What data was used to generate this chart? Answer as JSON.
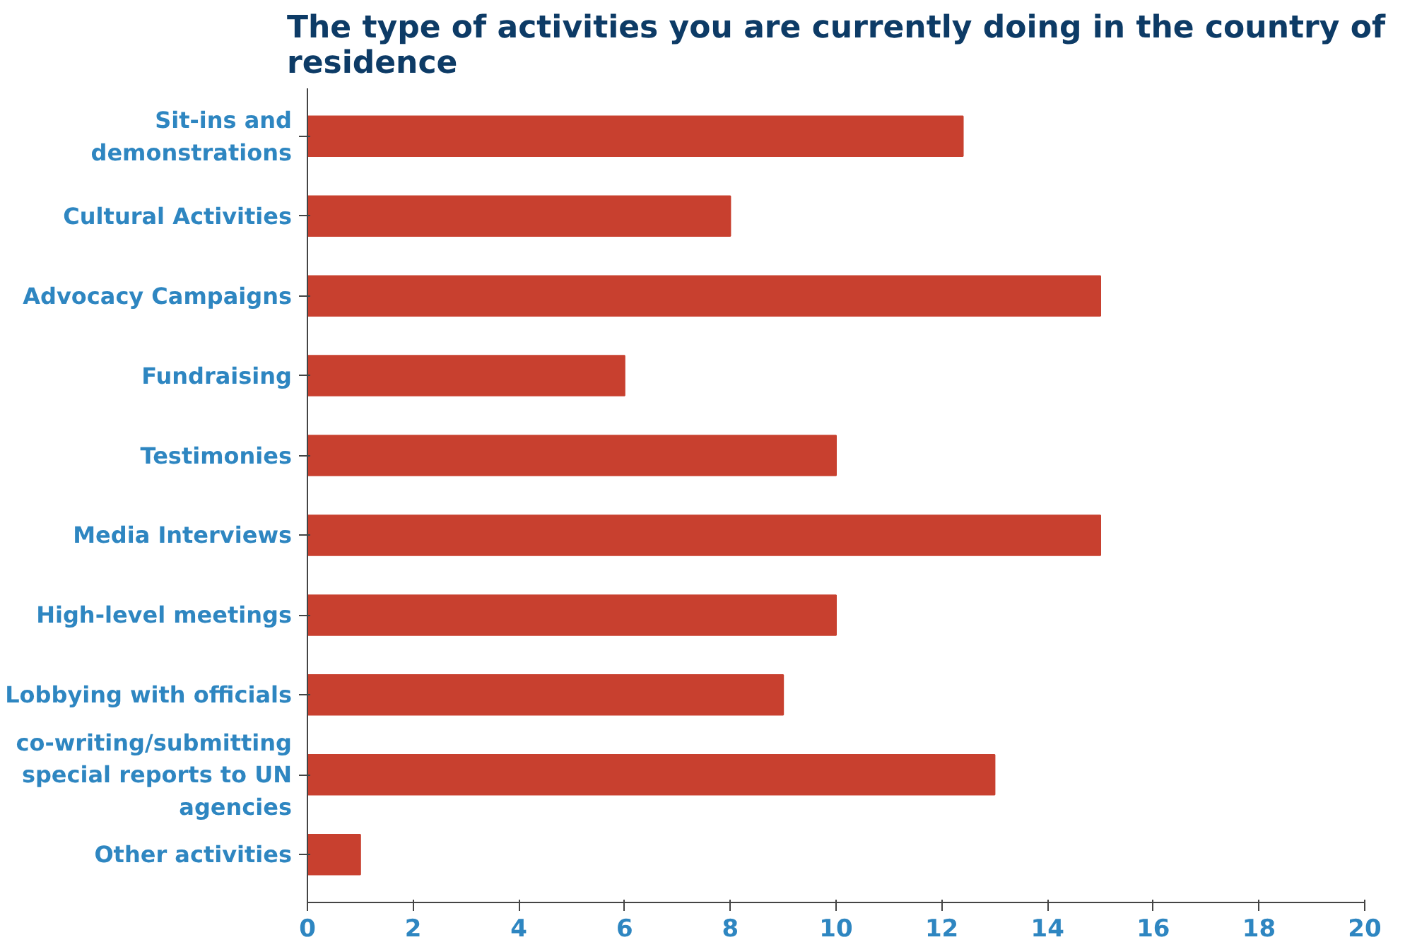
{
  "chart_data": {
    "type": "bar",
    "orientation": "horizontal",
    "title": "The type of activities you are currently doing in the country of residence",
    "categories": [
      "Sit-ins and demonstrations",
      "Cultural Activities",
      "Advocacy Campaigns",
      "Fundraising",
      "Testimonies",
      "Media Interviews",
      "High-level meetings",
      "Lobbying with officials",
      "co-writing/submitting special reports to UN agencies",
      "Other activities"
    ],
    "values": [
      12.4,
      8,
      15,
      6,
      10,
      15,
      10,
      9,
      13,
      1
    ],
    "color": "#c8402f",
    "xlim": [
      0,
      20
    ],
    "xticks": [
      0,
      2,
      4,
      6,
      8,
      10,
      12,
      14,
      16,
      18,
      20
    ],
    "grid": false
  }
}
